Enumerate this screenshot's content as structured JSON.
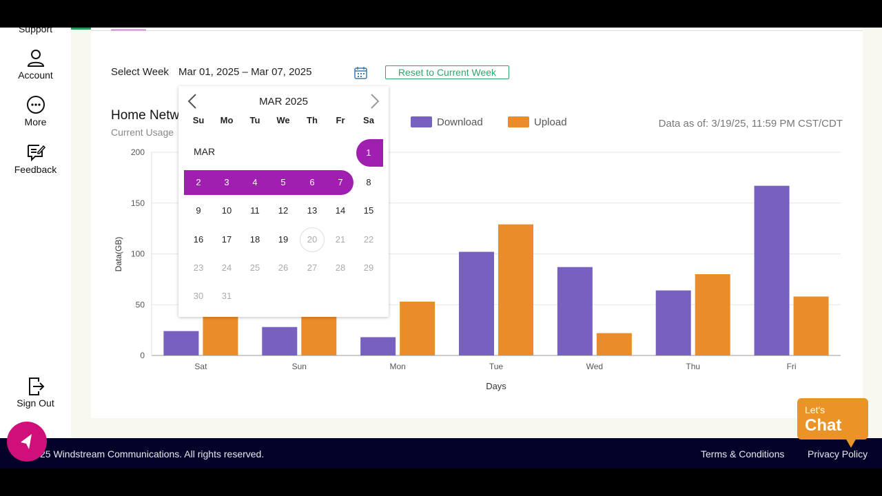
{
  "sidebar": {
    "items": [
      {
        "label": "Support",
        "icon": "support-icon"
      },
      {
        "label": "Account",
        "icon": "user-icon"
      },
      {
        "label": "More",
        "icon": "more-icon"
      },
      {
        "label": "Feedback",
        "icon": "feedback-icon"
      },
      {
        "label": "Sign Out",
        "icon": "sign-out-icon"
      }
    ]
  },
  "week": {
    "label": "Select Week",
    "value": "Mar 01, 2025 – Mar 07, 2025",
    "reset_label": "Reset to Current Week"
  },
  "section": {
    "title": "Home Netw",
    "subtitle": "Current Usage",
    "data_as_of": "Data as of: 3/19/25, 11:59 PM CST/CDT"
  },
  "calendar": {
    "title": "MAR 2025",
    "month_label": "MAR",
    "dow": [
      "Su",
      "Mo",
      "Tu",
      "We",
      "Th",
      "Fr",
      "Sa"
    ],
    "first_weekday": 6,
    "days": 31,
    "selected_range": [
      1,
      7
    ],
    "today": 20,
    "enabled_through": 19,
    "accent": "#a11fb0"
  },
  "chart_data": {
    "type": "bar",
    "categories": [
      "Sat",
      "Sun",
      "Mon",
      "Tue",
      "Wed",
      "Thu",
      "Fri"
    ],
    "series": [
      {
        "name": "Download",
        "color": "#7860c0",
        "values": [
          24,
          28,
          18,
          102,
          87,
          64,
          167
        ]
      },
      {
        "name": "Upload",
        "color": "#ea8c2a",
        "values": [
          40,
          42,
          53,
          129,
          22,
          80,
          58
        ]
      }
    ],
    "xlabel": "Days",
    "ylabel": "Data(GB)",
    "ylim": [
      0,
      200
    ],
    "yticks": [
      0,
      50,
      100,
      150,
      200
    ],
    "grid": true,
    "legend": "top"
  },
  "chat": {
    "line1": "Let's",
    "line2": "Chat"
  },
  "footer": {
    "copyright": "25 Windstream Communications. All rights reserved.",
    "links": [
      "Terms & Conditions",
      "Privacy Policy"
    ]
  }
}
